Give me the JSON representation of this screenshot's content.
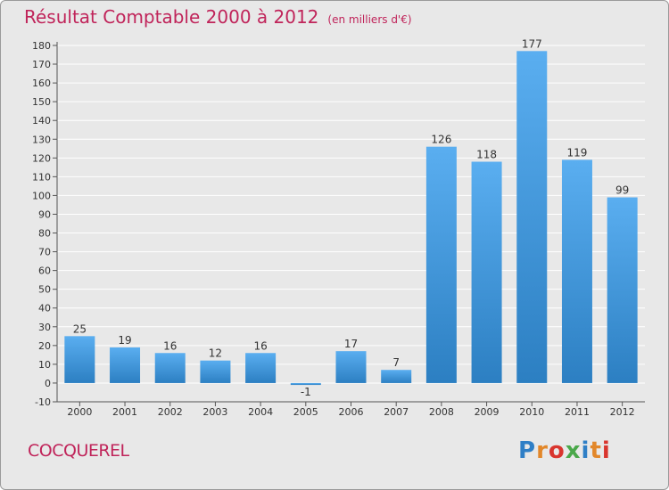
{
  "title": "Résultat Comptable 2000 à 2012",
  "unit": "(en milliers d'€)",
  "town": "COCQUEREL",
  "logo": {
    "text": "Proxiti",
    "colors": [
      "#2f7fc6",
      "#e2872a",
      "#d9352e",
      "#4aa84a",
      "#2f7fc6",
      "#e2872a",
      "#d9352e"
    ]
  },
  "colors": {
    "title": "#c0245a",
    "bar_top": "#5aaef0",
    "bar_bottom": "#2c7fc2",
    "axis": "#555555",
    "grid": "#ffffff",
    "background": "#e8e8e8"
  },
  "chart_data": {
    "type": "bar",
    "categories": [
      "2000",
      "2001",
      "2002",
      "2003",
      "2004",
      "2005",
      "2006",
      "2007",
      "2008",
      "2009",
      "2010",
      "2011",
      "2012"
    ],
    "values": [
      25,
      19,
      16,
      12,
      16,
      -1,
      17,
      7,
      126,
      118,
      177,
      119,
      99
    ],
    "data_labels": [
      "25",
      "19",
      "16",
      "12",
      "16",
      "-1",
      "17",
      "7",
      "126",
      "118",
      "177",
      "119",
      "99"
    ],
    "yticks": [
      -10,
      0,
      10,
      20,
      30,
      40,
      50,
      60,
      70,
      80,
      90,
      100,
      110,
      120,
      130,
      140,
      150,
      160,
      170,
      180
    ],
    "ylim": [
      -10,
      180
    ],
    "title": "Résultat Comptable 2000 à 2012",
    "xlabel": "",
    "ylabel": "",
    "grid": true,
    "legend": "none"
  }
}
